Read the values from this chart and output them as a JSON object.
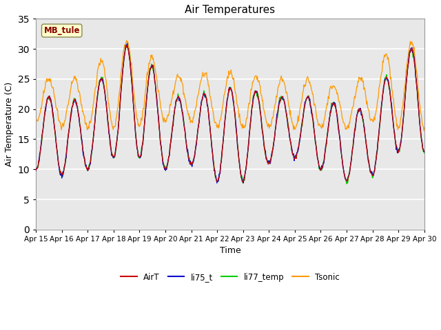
{
  "title": "Air Temperatures",
  "xlabel": "Time",
  "ylabel": "Air Temperature (C)",
  "annotation": "MB_tule",
  "ylim": [
    0,
    35
  ],
  "yticks": [
    0,
    5,
    10,
    15,
    20,
    25,
    30,
    35
  ],
  "colors": {
    "AirT": "#cc0000",
    "li75_t": "#0000cc",
    "li77_temp": "#00cc00",
    "Tsonic": "#ff9900"
  },
  "legend_labels": [
    "AirT",
    "li75_t",
    "li77_temp",
    "Tsonic"
  ],
  "fig_bg_color": "#ffffff",
  "plot_bg_color": "#e8e8e8",
  "grid_color": "#ffffff",
  "annotation_bg": "#ffffcc",
  "annotation_fg": "#880000"
}
